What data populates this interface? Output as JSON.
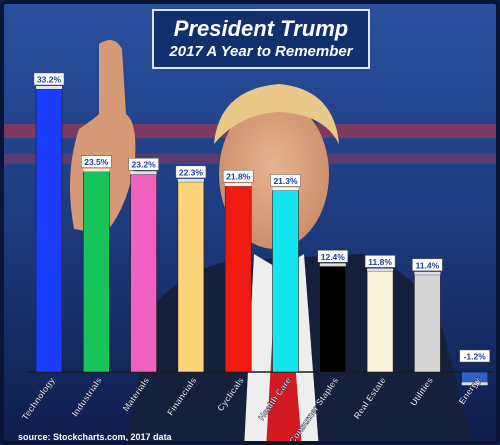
{
  "title": "President Trump",
  "subtitle": "2017 A Year to Remember",
  "source": "source: Stockcharts.com, 2017 data",
  "chart_data": {
    "type": "bar",
    "title": "President Trump",
    "subtitle": "2017 A Year to Remember",
    "categories": [
      "Technology",
      "Industrials",
      "Materials",
      "Financials",
      "Cyclicals",
      "Health Care",
      "Consumer Staples",
      "Real Estate",
      "Utilities",
      "Energy"
    ],
    "values": [
      33.2,
      23.5,
      23.2,
      22.3,
      21.8,
      21.3,
      12.4,
      11.8,
      11.4,
      -1.2
    ],
    "value_labels": [
      "33.2%",
      "23.5%",
      "23.2%",
      "22.3%",
      "21.8%",
      "21.3%",
      "12.4%",
      "11.8%",
      "11.4%",
      "-1.2%"
    ],
    "colors": [
      "#1a3cff",
      "#17c45a",
      "#f062c0",
      "#ffd47a",
      "#f01a10",
      "#14e6f0",
      "#000000",
      "#fbf3dc",
      "#d7d7d7",
      "#2f5fc8"
    ],
    "ylim": [
      -1.2,
      33.2
    ],
    "grid": false,
    "legend": "none"
  }
}
